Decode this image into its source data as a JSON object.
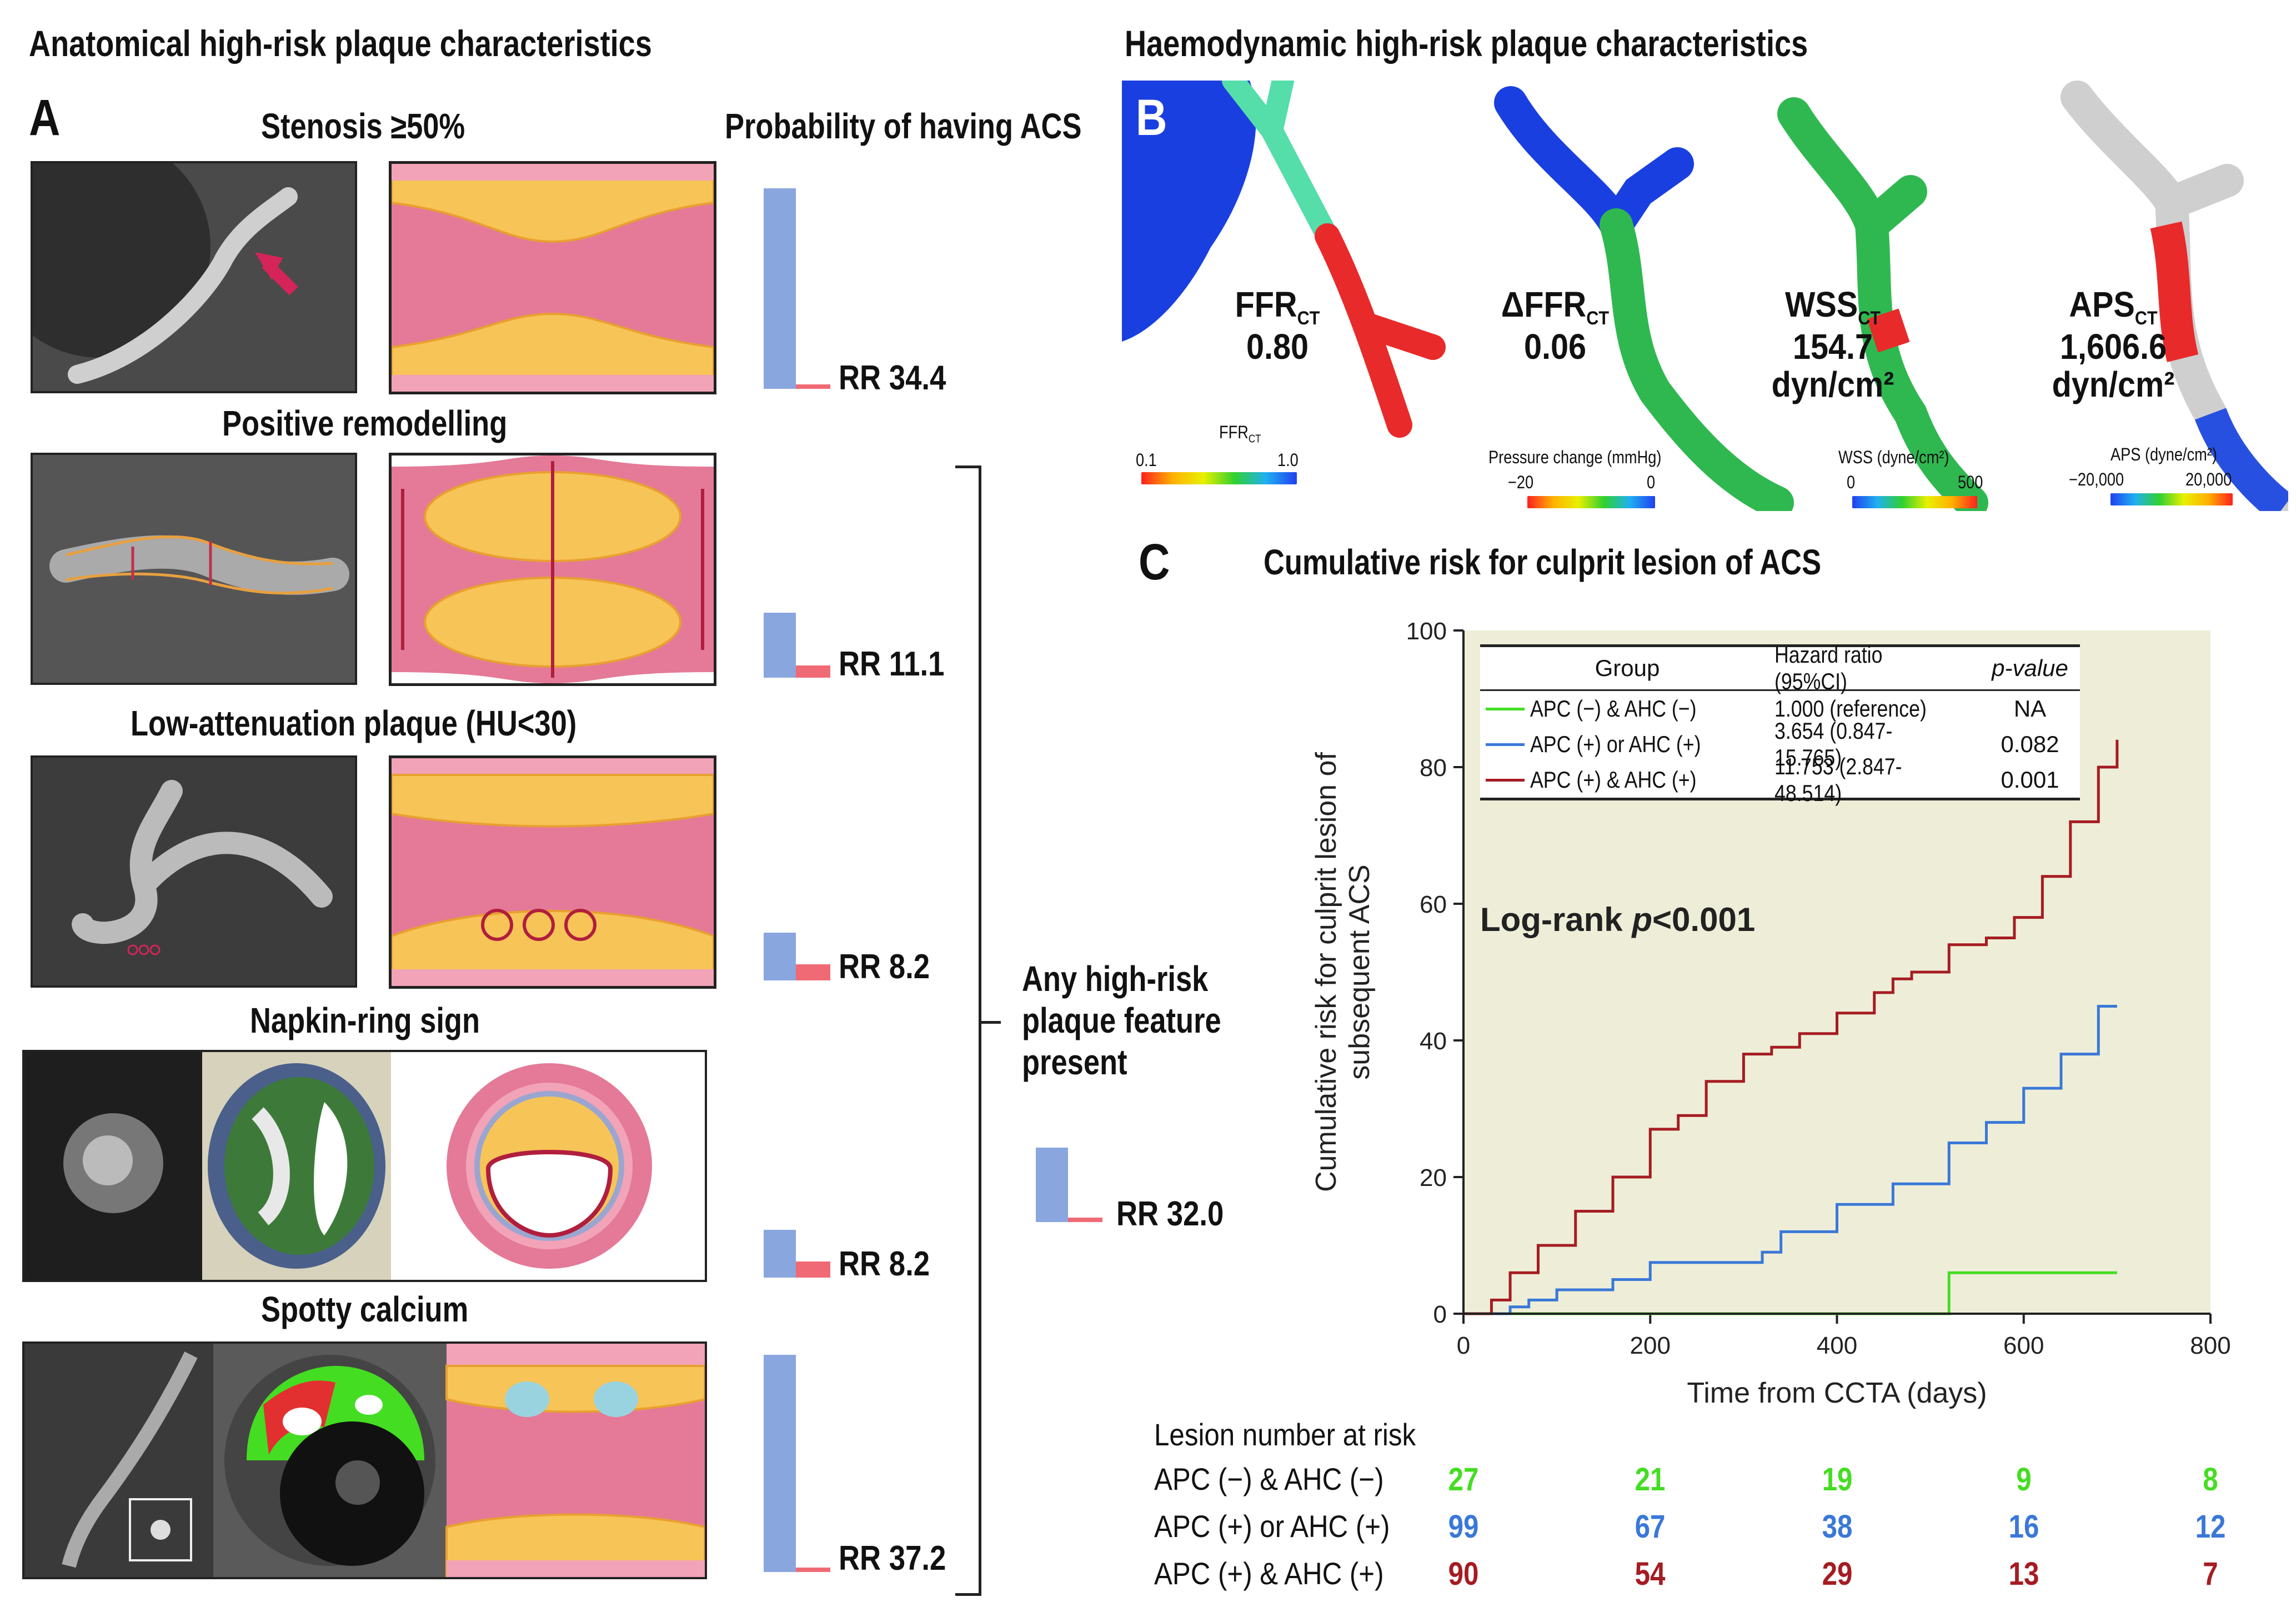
{
  "panel_a": {
    "section_title": "Anatomical high-risk plaque characteristics",
    "letter": "A",
    "prob_title": "Probability of having ACS",
    "features": [
      {
        "title": "Stenosis ≥50%",
        "rr": "RR 34.4",
        "bar_value": 34.4
      },
      {
        "title": "Positive remodelling",
        "rr": "RR 11.1",
        "bar_value": 11.1
      },
      {
        "title": "Low-attenuation plaque (HU<30)",
        "rr": "RR 8.2",
        "bar_value": 8.2
      },
      {
        "title": "Napkin-ring sign",
        "rr": "RR 8.2",
        "bar_value": 8.2
      },
      {
        "title": "Spotty calcium",
        "rr": "RR 37.2",
        "bar_value": 37.2
      }
    ],
    "any_feature": {
      "line1": "Any high-risk",
      "line2": "plaque feature",
      "line3": "present",
      "rr": "RR 32.0",
      "bar_value": 32.0
    }
  },
  "panel_b": {
    "section_title": "Haemodynamic high-risk plaque characteristics",
    "letter": "B",
    "vessels": [
      {
        "name": "FFR",
        "sub": "CT",
        "value1": "0.80",
        "value2": "",
        "scale_title": "FFR",
        "scale_sub": "CT",
        "scale_min": "0.1",
        "scale_max": "1.0"
      },
      {
        "name": "ΔFFR",
        "sub": "CT",
        "value1": "0.06",
        "value2": "",
        "scale_title": "Pressure change (mmHg)",
        "scale_sub": "",
        "scale_min": "−20",
        "scale_max": "0"
      },
      {
        "name": "WSS",
        "sub": "CT",
        "value1": "154.7",
        "value2": "dyn/cm²",
        "scale_title": "WSS (dyne/cm²)",
        "scale_sub": "",
        "scale_min": "0",
        "scale_max": "500"
      },
      {
        "name": "APS",
        "sub": "CT",
        "value1": "1,606.6",
        "value2": "dyn/cm²",
        "scale_title": "APS (dyne/cm²)",
        "scale_sub": "",
        "scale_min": "−20,000",
        "scale_max": "20,000"
      }
    ]
  },
  "panel_c": {
    "letter": "C",
    "title": "Cumulative risk for culprit lesion of ACS",
    "logrank_prefix": "Log-rank ",
    "logrank_p": "p",
    "logrank_suffix": "<0.001",
    "table": {
      "headers": [
        "Group",
        "Hazard ratio (95%CI)",
        "p-value"
      ],
      "rows": [
        {
          "group": "APC (−) & AHC (−)",
          "hr": "1.000 (reference)",
          "p": "NA"
        },
        {
          "group": "APC (+) or AHC (+)",
          "hr": "3.654 (0.847-15.765)",
          "p": "0.082"
        },
        {
          "group": "APC (+) & AHC (+)",
          "hr": "11.753 (2.847-48.514)",
          "p": "0.001"
        }
      ]
    },
    "risk_title": "Lesion number at risk",
    "risk_rows": [
      {
        "label": "APC (−) & AHC (−)",
        "values": [
          "27",
          "21",
          "19",
          "9",
          "8"
        ]
      },
      {
        "label": "APC (+) or AHC (+)",
        "values": [
          "99",
          "67",
          "38",
          "16",
          "12"
        ]
      },
      {
        "label": "APC (+) & AHC (+)",
        "values": [
          "90",
          "54",
          "29",
          "13",
          "7"
        ]
      }
    ]
  },
  "colors": {
    "green": "#44dd22",
    "blue": "#3a78d8",
    "darkred": "#a51c22",
    "plot_bg": "#eeeed8",
    "bar_blue": "#8aa6df",
    "bar_red": "#f06a75"
  },
  "chart_data": [
    {
      "type": "bar",
      "title": "Probability of having ACS",
      "categories": [
        "Stenosis ≥50%",
        "Positive remodelling",
        "Low-attenuation plaque (HU<30)",
        "Napkin-ring sign",
        "Spotty calcium",
        "Any high-risk plaque feature present"
      ],
      "values": [
        34.4,
        11.1,
        8.2,
        8.2,
        37.2,
        32.0
      ],
      "value_labels": [
        "RR 34.4",
        "RR 11.1",
        "RR 8.2",
        "RR 8.2",
        "RR 37.2",
        "RR 32.0"
      ]
    },
    {
      "type": "line",
      "title": "Cumulative risk for culprit lesion of ACS",
      "xlabel": "Time from CCTA (days)",
      "ylabel_line1": "Cumulative risk for culprit lesion of",
      "ylabel_line2": "subsequent ACS",
      "xlim": [
        0,
        800
      ],
      "ylim": [
        0,
        100
      ],
      "xticks": [
        0,
        200,
        400,
        600,
        800
      ],
      "yticks": [
        0,
        20,
        40,
        60,
        80,
        100
      ],
      "series": [
        {
          "name": "APC (−) & AHC (−)",
          "color": "#44dd22",
          "x": [
            0,
            520,
            520,
            700
          ],
          "y": [
            0,
            0,
            6,
            6
          ]
        },
        {
          "name": "APC (+) or AHC (+)",
          "color": "#3a78d8",
          "x": [
            0,
            50,
            70,
            100,
            160,
            200,
            320,
            340,
            400,
            460,
            520,
            560,
            600,
            640,
            680,
            700
          ],
          "y": [
            0,
            1,
            2,
            3.5,
            5,
            7.5,
            9,
            12,
            16,
            19,
            25,
            28,
            33,
            38,
            45,
            45
          ]
        },
        {
          "name": "APC (+) & AHC (+)",
          "color": "#a51c22",
          "x": [
            0,
            30,
            50,
            80,
            120,
            160,
            200,
            230,
            260,
            300,
            330,
            360,
            400,
            440,
            460,
            480,
            520,
            560,
            590,
            620,
            650,
            680,
            700
          ],
          "y": [
            0,
            2,
            6,
            10,
            15,
            20,
            27,
            29,
            34,
            38,
            39,
            41,
            44,
            47,
            49,
            50,
            54,
            55,
            58,
            64,
            72,
            80,
            84
          ]
        }
      ]
    }
  ]
}
